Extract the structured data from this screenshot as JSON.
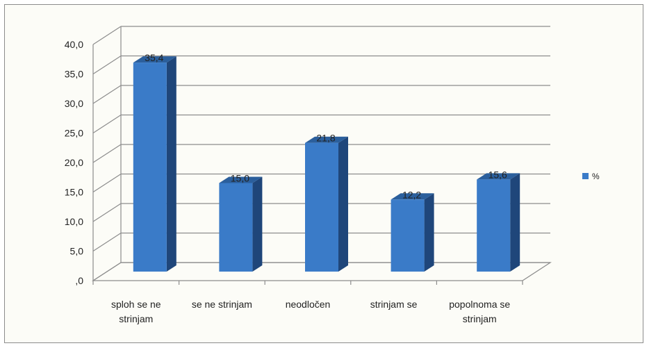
{
  "chart_data": {
    "type": "bar",
    "style": "3d-column",
    "categories": [
      "sploh se ne strinjam",
      "se ne strinjam",
      "neodločen",
      "strinjam se",
      "popolnoma se strinjam"
    ],
    "category_label_lines": [
      [
        "sploh se ne",
        "strinjam"
      ],
      [
        "se ne strinjam"
      ],
      [
        "neodločen"
      ],
      [
        "strinjam se"
      ],
      [
        "popolnoma se",
        "strinjam"
      ]
    ],
    "series": [
      {
        "name": "%",
        "values": [
          35.4,
          15.0,
          21.8,
          12.2,
          15.6
        ]
      }
    ],
    "data_labels": [
      "35,4",
      "15,0",
      "21,8",
      "12,2",
      "15,6"
    ],
    "yticks": [
      ",0",
      "5,0",
      "10,0",
      "15,0",
      "20,0",
      "25,0",
      "30,0",
      "35,0",
      "40,0"
    ],
    "ylim": [
      0,
      40
    ],
    "ystep": 5,
    "grid": true,
    "legend": "right",
    "colors": {
      "bar_front": "#3a7bc8",
      "bar_side": "#1f467a",
      "bar_top": "#2b5f9c",
      "grid": "#8c8c8c",
      "frame": "#8c8c8c"
    }
  }
}
